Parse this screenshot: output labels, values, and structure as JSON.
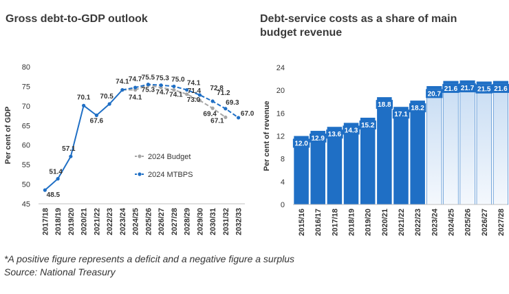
{
  "titles": {
    "left": "Gross debt-to-GDP outlook",
    "right": "Debt-service costs as a share of main budget revenue"
  },
  "footnotes": {
    "note": "*A positive figure represents a deficit and a negative figure a surplus",
    "source": "Source: National Treasury"
  },
  "colors": {
    "mtbps": "#1f6fc5",
    "budget": "#a6a6a6",
    "bar_actual": "#1f6fc5",
    "bar_projected_top": "#c7dcf3",
    "bar_projected_bottom": "#f4f8fd"
  },
  "chart_data": [
    {
      "type": "line",
      "title": "Gross debt-to-GDP outlook",
      "ylabel": "Per cent of GDP",
      "ylim": [
        45,
        80
      ],
      "yticks": [
        45,
        50,
        55,
        60,
        65,
        70,
        75,
        80
      ],
      "legend_position": "center-right",
      "x": [
        "2017/18",
        "2018/19",
        "2019/20",
        "2020/21",
        "2021/22",
        "2022/23",
        "2023/24",
        "2024/25",
        "2025/26",
        "2026/27",
        "2027/28",
        "2028/29",
        "2029/30",
        "2030/31",
        "2031/32",
        "2032/33"
      ],
      "series": [
        {
          "name": "2024 Budget",
          "color": "#a6a6a6",
          "dashed_from": "2023/24",
          "values": [
            null,
            null,
            null,
            null,
            null,
            null,
            74.1,
            74.1,
            75.3,
            74.7,
            74.1,
            73.0,
            71.4,
            69.4,
            67.1,
            null
          ]
        },
        {
          "name": "2024 MTBPS",
          "color": "#1f6fc5",
          "dashed_from": "2023/24",
          "values": [
            48.5,
            51.4,
            57.1,
            70.1,
            67.6,
            70.5,
            74.1,
            74.7,
            75.5,
            75.3,
            75.0,
            74.1,
            72.8,
            71.2,
            69.3,
            67.0
          ]
        }
      ],
      "data_labels": [
        {
          "x": "2017/18",
          "text": "48.5"
        },
        {
          "x": "2018/19",
          "text": "51.4"
        },
        {
          "x": "2019/20",
          "text": "57.1"
        },
        {
          "x": "2020/21",
          "text": "70.1"
        },
        {
          "x": "2021/22",
          "text": "67.6"
        },
        {
          "x": "2022/23",
          "text": "70.5"
        },
        {
          "x": "2023/24",
          "text": "74.1"
        },
        {
          "x": "2024/25",
          "text": "74.7"
        },
        {
          "x": "2025/26",
          "text": "75.5"
        },
        {
          "x": "2026/27",
          "text": "75.3"
        },
        {
          "x": "2027/28",
          "text": "75.0"
        },
        {
          "x": "2028/29",
          "text": "74.1"
        },
        {
          "x": "2030/31",
          "text": "72.8"
        },
        {
          "x": "2031/32",
          "text": "71.2"
        },
        {
          "x": "2031/32",
          "text": "69.3"
        },
        {
          "x": "2032/33",
          "text": "67.0"
        },
        {
          "x": "2024/25",
          "text": "74.1"
        },
        {
          "x": "2025/26",
          "text": "75.3"
        },
        {
          "x": "2026/27",
          "text": "74.7"
        },
        {
          "x": "2027/28",
          "text": "74.1"
        },
        {
          "x": "2029/30",
          "text": "73.0"
        },
        {
          "x": "2029/30",
          "text": "71.4"
        },
        {
          "x": "2030/31",
          "text": "69.4"
        },
        {
          "x": "2031/32",
          "text": "67.1"
        }
      ]
    },
    {
      "type": "bar",
      "title": "Debt-service costs as a share of main budget revenue",
      "ylabel": "Per cent of revenue",
      "ylim": [
        0,
        24
      ],
      "yticks": [
        0,
        4,
        8,
        12,
        16,
        20,
        24
      ],
      "categories": [
        "2015/16",
        "2016/17",
        "2017/18",
        "2018/19",
        "2019/20",
        "2020/21",
        "2021/22",
        "2022/23",
        "2023/24",
        "2024/25",
        "2025/26",
        "2026/27",
        "2027/28"
      ],
      "values": [
        12.0,
        12.9,
        13.6,
        14.3,
        15.2,
        18.8,
        17.1,
        18.2,
        20.7,
        21.6,
        21.7,
        21.5,
        21.6
      ],
      "labels": [
        "12.0",
        "12.9",
        "13.6",
        "14.3",
        "15.2",
        "18.8",
        "17.1",
        "18.2",
        "20.7",
        "21.6",
        "21.7",
        "21.5",
        "21.6"
      ],
      "projected_from": "2023/24"
    }
  ]
}
